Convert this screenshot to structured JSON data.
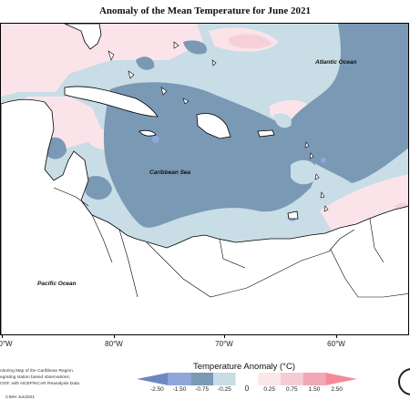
{
  "title": "Anomaly of the Mean Temperature for June 2021",
  "ocean_labels": {
    "atlantic": "Atlantic Ocean",
    "caribbean": "Caribbean Sea",
    "pacific": "Pacific Ocean"
  },
  "longitude_labels": [
    "0°W",
    "80°W",
    "70°W",
    "60°W"
  ],
  "legend": {
    "title": "Temperature Anomaly (°C)",
    "tick_labels": [
      "-2.50",
      "-1.50",
      "-0.75",
      "-0.25",
      "0",
      "0.25",
      "0.75",
      "1.50",
      "2.50"
    ],
    "colors": [
      "#6f87c1",
      "#8fa6dc",
      "#7a9ab5",
      "#c8dde6",
      "#ffffff",
      "#fbe6ea",
      "#f5ccd3",
      "#f2a8b4",
      "#f48a98"
    ]
  },
  "credits": {
    "line1": "nitoring Map of the Caribbean Region.",
    "line2": "egrating station based observations,",
    "line3": "OOF, with NCEP/NCAR Reanalysis Data",
    "line4": "CIMH Jun2021"
  },
  "colors": {
    "strong_cool": "#7a99b5",
    "light_cool": "#c8dde6",
    "light_warm": "#fae4ea",
    "warm": "#f6d0d8"
  }
}
